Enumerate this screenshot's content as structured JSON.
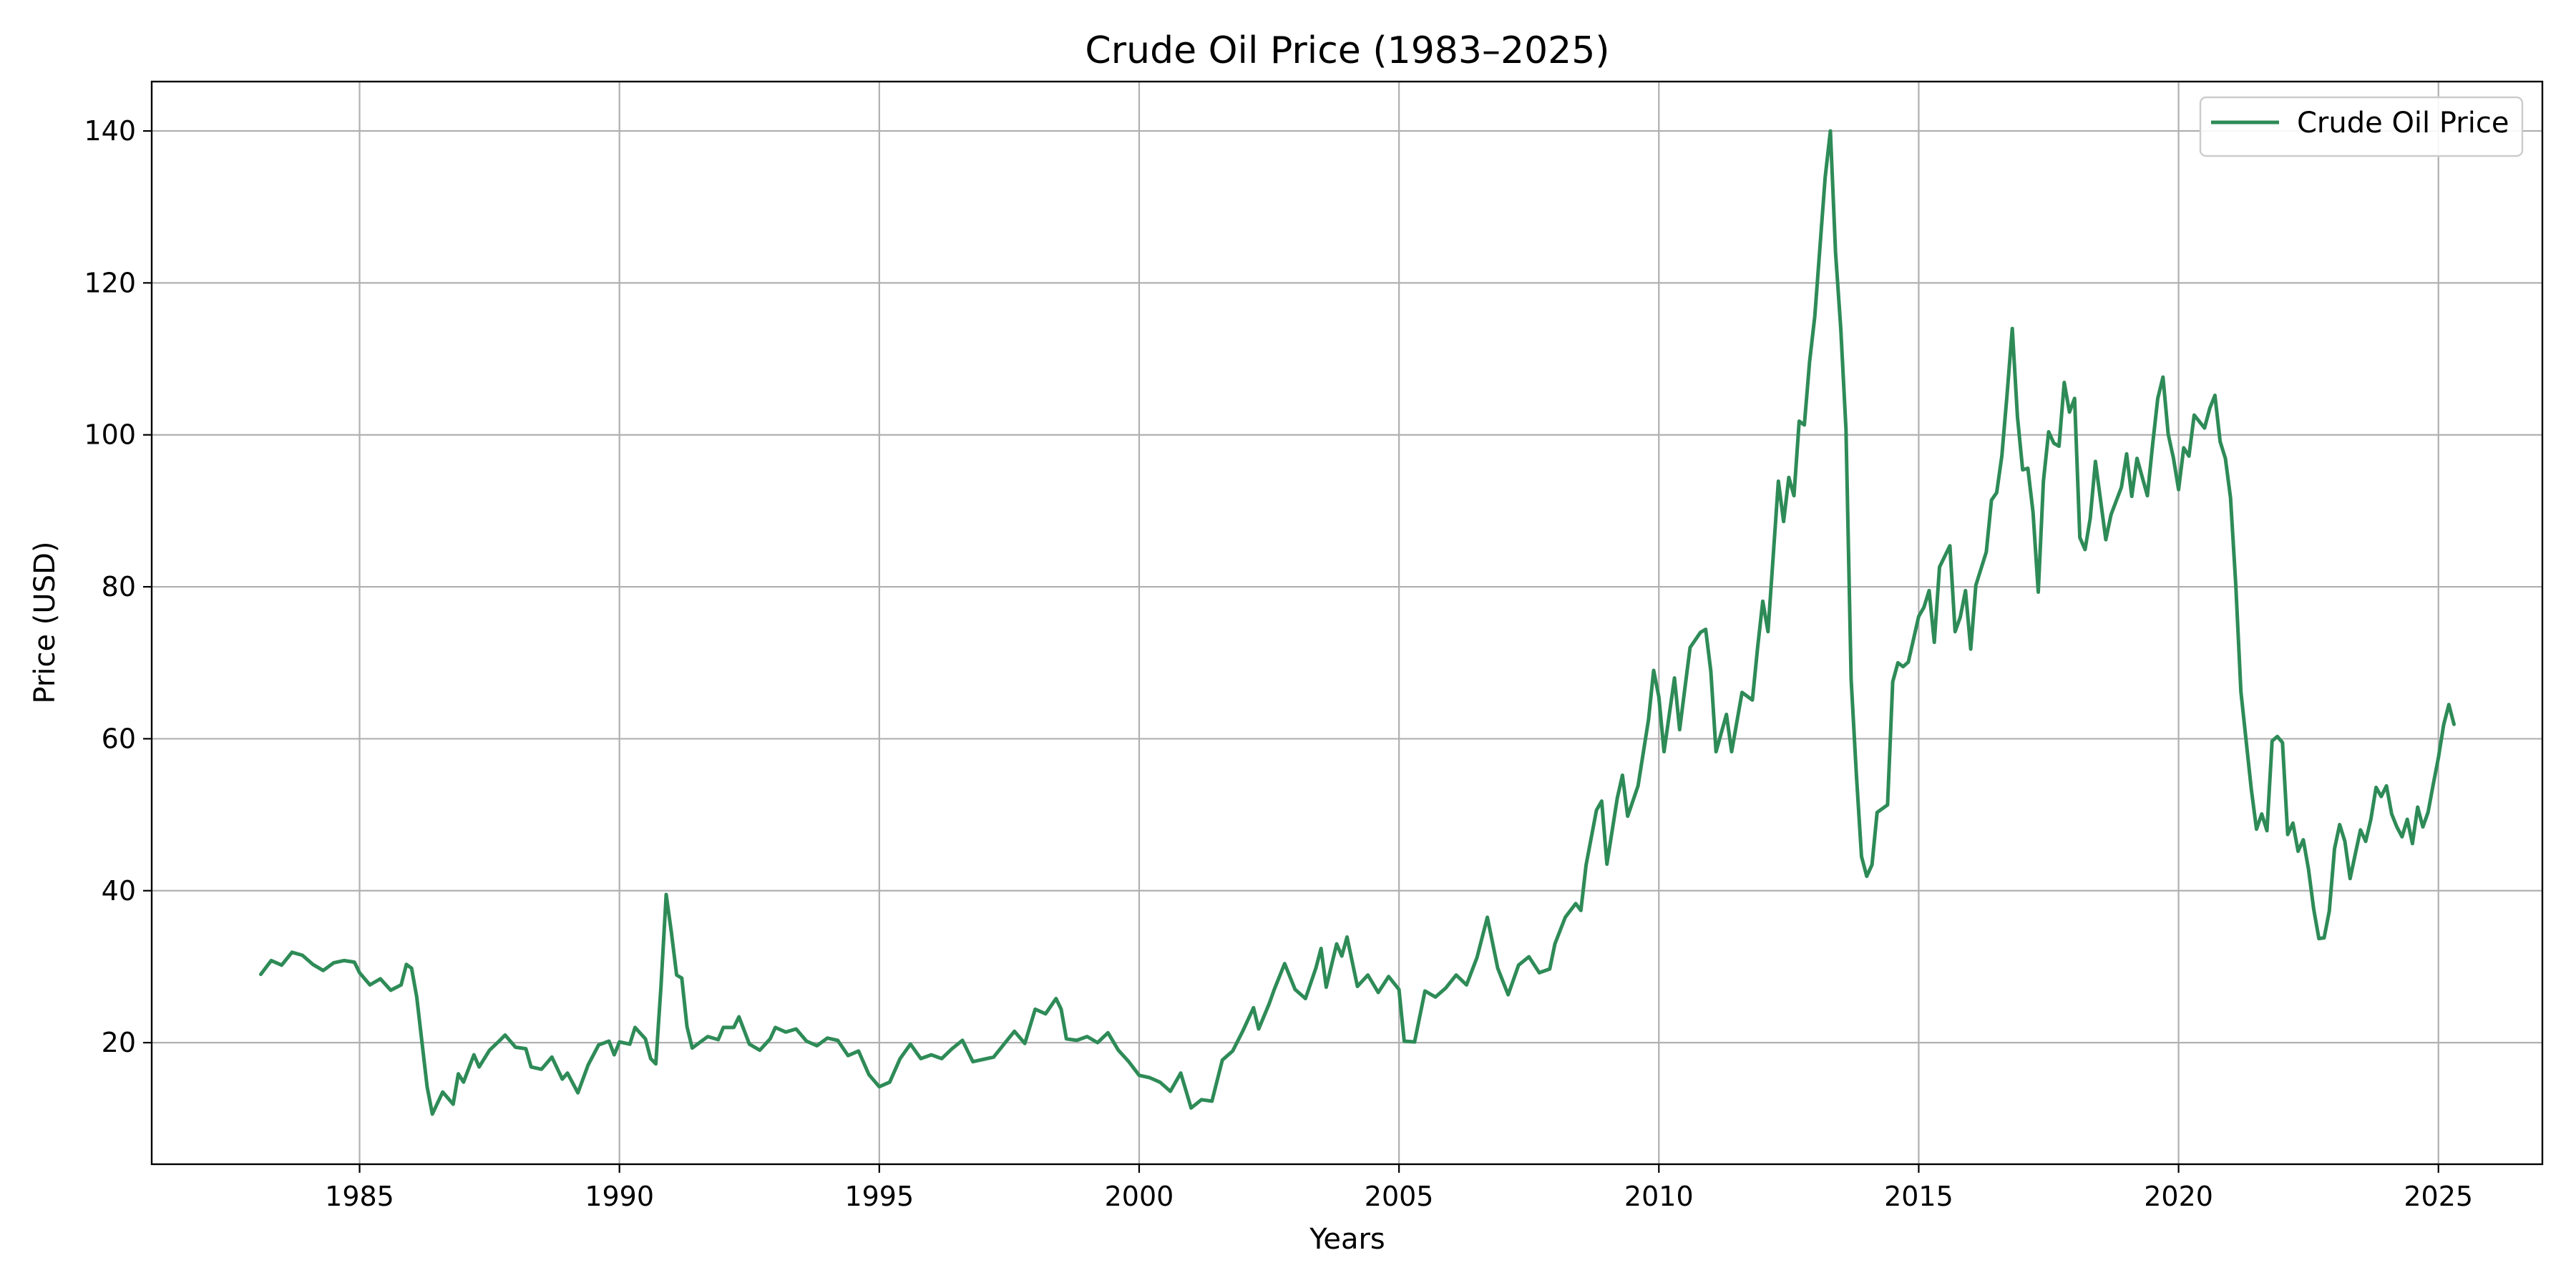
{
  "chart_data": {
    "type": "line",
    "title": "Crude Oil Price (1983–2025)",
    "xlabel": "Years",
    "ylabel": "Price (USD)",
    "xlim": [
      1981.0,
      2027.0
    ],
    "ylim": [
      4.0,
      146.5
    ],
    "x_ticks": [
      1985,
      1990,
      1995,
      2000,
      2005,
      2010,
      2015,
      2020,
      2025
    ],
    "x_tick_labels": [
      "1985",
      "1990",
      "1995",
      "2000",
      "2005",
      "2010",
      "2015",
      "2020",
      "2025"
    ],
    "y_ticks": [
      20,
      40,
      60,
      80,
      100,
      120,
      140
    ],
    "y_tick_labels": [
      "20",
      "40",
      "60",
      "80",
      "100",
      "120",
      "140"
    ],
    "grid": true,
    "legend_position": "top-right",
    "colors": {
      "line": "#2e8b57",
      "grid": "#b0b0b0",
      "axis": "#000000",
      "legend_border": "#cccccc"
    },
    "series": [
      {
        "name": "Crude Oil Price",
        "points": [
          [
            1983.1,
            29.0
          ],
          [
            1983.3,
            30.8
          ],
          [
            1983.5,
            30.2
          ],
          [
            1983.7,
            31.9
          ],
          [
            1983.9,
            31.5
          ],
          [
            1984.1,
            30.3
          ],
          [
            1984.3,
            29.5
          ],
          [
            1984.5,
            30.5
          ],
          [
            1984.7,
            30.8
          ],
          [
            1984.9,
            30.6
          ],
          [
            1985.0,
            29.2
          ],
          [
            1985.2,
            27.6
          ],
          [
            1985.4,
            28.4
          ],
          [
            1985.6,
            26.9
          ],
          [
            1985.8,
            27.6
          ],
          [
            1985.9,
            30.3
          ],
          [
            1986.0,
            29.8
          ],
          [
            1986.1,
            26.0
          ],
          [
            1986.3,
            14.2
          ],
          [
            1986.4,
            10.6
          ],
          [
            1986.6,
            13.5
          ],
          [
            1986.8,
            11.9
          ],
          [
            1986.9,
            15.9
          ],
          [
            1987.0,
            14.8
          ],
          [
            1987.2,
            18.4
          ],
          [
            1987.3,
            16.8
          ],
          [
            1987.5,
            19.0
          ],
          [
            1987.7,
            20.3
          ],
          [
            1987.8,
            21.0
          ],
          [
            1988.0,
            19.4
          ],
          [
            1988.2,
            19.2
          ],
          [
            1988.3,
            16.8
          ],
          [
            1988.5,
            16.5
          ],
          [
            1988.7,
            18.1
          ],
          [
            1988.9,
            15.2
          ],
          [
            1989.0,
            16.0
          ],
          [
            1989.2,
            13.4
          ],
          [
            1989.4,
            17.1
          ],
          [
            1989.6,
            19.7
          ],
          [
            1989.8,
            20.2
          ],
          [
            1989.9,
            18.4
          ],
          [
            1990.0,
            20.1
          ],
          [
            1990.2,
            19.8
          ],
          [
            1990.3,
            22.0
          ],
          [
            1990.5,
            20.5
          ],
          [
            1990.6,
            17.9
          ],
          [
            1990.7,
            17.2
          ],
          [
            1990.8,
            27.5
          ],
          [
            1990.9,
            39.5
          ],
          [
            1991.0,
            34.5
          ],
          [
            1991.1,
            28.9
          ],
          [
            1991.2,
            28.5
          ],
          [
            1991.3,
            22.1
          ],
          [
            1991.4,
            19.3
          ],
          [
            1991.6,
            20.3
          ],
          [
            1991.7,
            20.8
          ],
          [
            1991.9,
            20.4
          ],
          [
            1992.0,
            22.0
          ],
          [
            1992.2,
            22.0
          ],
          [
            1992.3,
            23.4
          ],
          [
            1992.5,
            19.8
          ],
          [
            1992.7,
            19.0
          ],
          [
            1992.9,
            20.5
          ],
          [
            1993.0,
            22.0
          ],
          [
            1993.2,
            21.4
          ],
          [
            1993.4,
            21.8
          ],
          [
            1993.6,
            20.2
          ],
          [
            1993.8,
            19.6
          ],
          [
            1994.0,
            20.6
          ],
          [
            1994.2,
            20.3
          ],
          [
            1994.4,
            18.3
          ],
          [
            1994.6,
            18.9
          ],
          [
            1994.8,
            15.8
          ],
          [
            1995.0,
            14.2
          ],
          [
            1995.2,
            14.8
          ],
          [
            1995.4,
            17.9
          ],
          [
            1995.6,
            19.8
          ],
          [
            1995.8,
            17.9
          ],
          [
            1996.0,
            18.4
          ],
          [
            1996.2,
            17.9
          ],
          [
            1996.4,
            19.2
          ],
          [
            1996.6,
            20.3
          ],
          [
            1996.8,
            17.5
          ],
          [
            1997.0,
            17.8
          ],
          [
            1997.2,
            18.1
          ],
          [
            1997.4,
            19.8
          ],
          [
            1997.6,
            21.5
          ],
          [
            1997.8,
            19.9
          ],
          [
            1998.0,
            24.4
          ],
          [
            1998.2,
            23.8
          ],
          [
            1998.4,
            25.8
          ],
          [
            1998.5,
            24.4
          ],
          [
            1998.6,
            20.5
          ],
          [
            1998.8,
            20.3
          ],
          [
            1999.0,
            20.8
          ],
          [
            1999.2,
            20.0
          ],
          [
            1999.4,
            21.3
          ],
          [
            1999.6,
            19.0
          ],
          [
            1999.8,
            17.5
          ],
          [
            2000.0,
            15.7
          ],
          [
            2000.2,
            15.4
          ],
          [
            2000.4,
            14.8
          ],
          [
            2000.6,
            13.6
          ],
          [
            2000.8,
            16.0
          ],
          [
            2001.0,
            11.4
          ],
          [
            2001.2,
            12.5
          ],
          [
            2001.4,
            12.3
          ],
          [
            2001.6,
            17.7
          ],
          [
            2001.8,
            18.9
          ],
          [
            2002.0,
            21.6
          ],
          [
            2002.2,
            24.6
          ],
          [
            2002.3,
            21.8
          ],
          [
            2002.5,
            25.1
          ],
          [
            2002.6,
            27.0
          ],
          [
            2002.8,
            30.4
          ],
          [
            2003.0,
            27.0
          ],
          [
            2003.2,
            25.8
          ],
          [
            2003.4,
            29.8
          ],
          [
            2003.5,
            32.4
          ],
          [
            2003.6,
            27.3
          ],
          [
            2003.8,
            33.0
          ],
          [
            2003.9,
            31.4
          ],
          [
            2004.0,
            33.9
          ],
          [
            2004.2,
            27.4
          ],
          [
            2004.4,
            28.9
          ],
          [
            2004.6,
            26.6
          ],
          [
            2004.8,
            28.7
          ],
          [
            2005.0,
            27.0
          ],
          [
            2005.1,
            20.2
          ],
          [
            2005.3,
            20.1
          ],
          [
            2005.5,
            26.8
          ],
          [
            2005.7,
            26.0
          ],
          [
            2005.9,
            27.2
          ],
          [
            2006.1,
            28.9
          ],
          [
            2006.3,
            27.6
          ],
          [
            2006.5,
            31.2
          ],
          [
            2006.7,
            36.5
          ],
          [
            2006.9,
            29.8
          ],
          [
            2007.1,
            26.3
          ],
          [
            2007.3,
            30.2
          ],
          [
            2007.5,
            31.3
          ],
          [
            2007.7,
            29.2
          ],
          [
            2007.9,
            29.7
          ],
          [
            2008.0,
            33.0
          ],
          [
            2008.2,
            36.5
          ],
          [
            2008.4,
            38.3
          ],
          [
            2008.5,
            37.4
          ],
          [
            2008.6,
            43.4
          ],
          [
            2008.8,
            50.6
          ],
          [
            2008.9,
            51.8
          ],
          [
            2009.0,
            43.5
          ],
          [
            2009.2,
            52.2
          ],
          [
            2009.3,
            55.2
          ],
          [
            2009.4,
            49.8
          ],
          [
            2009.6,
            53.8
          ],
          [
            2009.8,
            62.5
          ],
          [
            2009.9,
            69.0
          ],
          [
            2010.0,
            65.5
          ],
          [
            2010.1,
            58.3
          ],
          [
            2010.3,
            68.0
          ],
          [
            2010.4,
            61.2
          ],
          [
            2010.6,
            72.0
          ],
          [
            2010.8,
            74.0
          ],
          [
            2010.9,
            74.4
          ],
          [
            2011.0,
            68.9
          ],
          [
            2011.1,
            58.3
          ],
          [
            2011.3,
            63.2
          ],
          [
            2011.4,
            58.3
          ],
          [
            2011.6,
            66.1
          ],
          [
            2011.8,
            65.1
          ],
          [
            2011.9,
            72.0
          ],
          [
            2012.0,
            78.1
          ],
          [
            2012.1,
            74.1
          ],
          [
            2012.3,
            93.9
          ],
          [
            2012.4,
            88.6
          ],
          [
            2012.5,
            94.4
          ],
          [
            2012.6,
            92.0
          ],
          [
            2012.7,
            101.8
          ],
          [
            2012.8,
            101.3
          ],
          [
            2012.9,
            109.6
          ],
          [
            2013.0,
            115.6
          ],
          [
            2013.2,
            133.9
          ],
          [
            2013.3,
            140.0
          ],
          [
            2013.4,
            124.0
          ],
          [
            2013.5,
            114.0
          ],
          [
            2013.6,
            100.7
          ],
          [
            2013.7,
            67.8
          ],
          [
            2013.8,
            55.3
          ],
          [
            2013.9,
            44.5
          ],
          [
            2014.0,
            41.9
          ],
          [
            2014.1,
            43.4
          ],
          [
            2014.2,
            50.3
          ],
          [
            2014.4,
            51.3
          ],
          [
            2014.5,
            67.5
          ],
          [
            2014.6,
            70.0
          ],
          [
            2014.7,
            69.5
          ],
          [
            2014.8,
            70.1
          ],
          [
            2015.0,
            76.1
          ],
          [
            2015.1,
            77.3
          ],
          [
            2015.2,
            79.5
          ],
          [
            2015.3,
            72.7
          ],
          [
            2015.4,
            82.6
          ],
          [
            2015.6,
            85.4
          ],
          [
            2015.7,
            74.1
          ],
          [
            2015.8,
            76.0
          ],
          [
            2015.9,
            79.5
          ],
          [
            2016.0,
            71.8
          ],
          [
            2016.1,
            80.2
          ],
          [
            2016.3,
            84.6
          ],
          [
            2016.4,
            91.4
          ],
          [
            2016.5,
            92.4
          ],
          [
            2016.6,
            97.2
          ],
          [
            2016.7,
            105.3
          ],
          [
            2016.8,
            114.0
          ],
          [
            2016.9,
            102.4
          ],
          [
            2017.0,
            95.4
          ],
          [
            2017.1,
            95.6
          ],
          [
            2017.2,
            89.8
          ],
          [
            2017.3,
            79.3
          ],
          [
            2017.4,
            93.9
          ],
          [
            2017.5,
            100.4
          ],
          [
            2017.6,
            98.9
          ],
          [
            2017.7,
            98.5
          ],
          [
            2017.8,
            106.9
          ],
          [
            2017.9,
            103.0
          ],
          [
            2018.0,
            104.8
          ],
          [
            2018.1,
            86.5
          ],
          [
            2018.2,
            84.9
          ],
          [
            2018.3,
            89.0
          ],
          [
            2018.4,
            96.5
          ],
          [
            2018.6,
            86.2
          ],
          [
            2018.7,
            89.5
          ],
          [
            2018.9,
            93.1
          ],
          [
            2019.0,
            97.5
          ],
          [
            2019.1,
            91.9
          ],
          [
            2019.2,
            96.9
          ],
          [
            2019.4,
            92.0
          ],
          [
            2019.5,
            98.7
          ],
          [
            2019.6,
            104.8
          ],
          [
            2019.7,
            107.6
          ],
          [
            2019.8,
            100.1
          ],
          [
            2019.9,
            97.0
          ],
          [
            2020.0,
            92.8
          ],
          [
            2020.1,
            98.3
          ],
          [
            2020.2,
            97.2
          ],
          [
            2020.3,
            102.6
          ],
          [
            2020.5,
            100.9
          ],
          [
            2020.6,
            103.5
          ],
          [
            2020.7,
            105.2
          ],
          [
            2020.8,
            99.1
          ],
          [
            2020.9,
            96.9
          ],
          [
            2021.0,
            91.7
          ],
          [
            2021.1,
            80.3
          ],
          [
            2021.2,
            66.2
          ],
          [
            2021.4,
            53.3
          ],
          [
            2021.5,
            48.1
          ],
          [
            2021.6,
            50.1
          ],
          [
            2021.7,
            47.9
          ],
          [
            2021.8,
            59.7
          ],
          [
            2021.9,
            60.3
          ],
          [
            2022.0,
            59.5
          ],
          [
            2022.1,
            47.4
          ],
          [
            2022.2,
            48.9
          ],
          [
            2022.3,
            45.2
          ],
          [
            2022.4,
            46.7
          ],
          [
            2022.5,
            42.8
          ],
          [
            2022.6,
            37.6
          ],
          [
            2022.7,
            33.7
          ],
          [
            2022.8,
            33.8
          ],
          [
            2022.9,
            37.3
          ],
          [
            2023.0,
            45.5
          ],
          [
            2023.1,
            48.7
          ],
          [
            2023.2,
            46.5
          ],
          [
            2023.3,
            41.6
          ],
          [
            2023.4,
            44.8
          ],
          [
            2023.5,
            48.0
          ],
          [
            2023.6,
            46.5
          ],
          [
            2023.7,
            49.4
          ],
          [
            2023.8,
            53.6
          ],
          [
            2023.9,
            52.4
          ],
          [
            2024.0,
            53.8
          ],
          [
            2024.1,
            50.1
          ],
          [
            2024.2,
            48.4
          ],
          [
            2024.3,
            47.1
          ],
          [
            2024.4,
            49.4
          ],
          [
            2024.5,
            46.2
          ],
          [
            2024.6,
            51.0
          ],
          [
            2024.7,
            48.4
          ],
          [
            2024.8,
            50.3
          ],
          [
            2024.9,
            54.0
          ],
          [
            2025.0,
            57.5
          ],
          [
            2025.1,
            61.8
          ],
          [
            2025.2,
            64.5
          ],
          [
            2025.3,
            61.9
          ]
        ]
      }
    ]
  }
}
